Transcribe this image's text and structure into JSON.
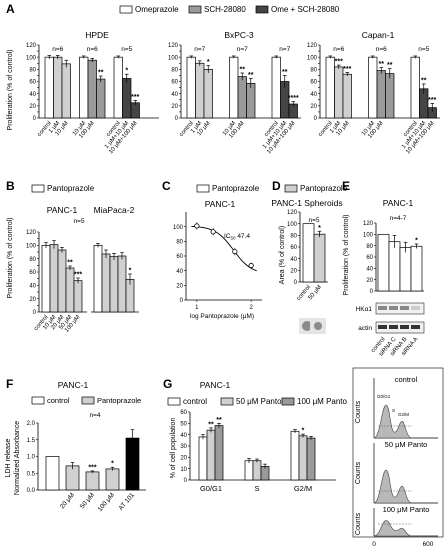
{
  "panel_letters": {
    "a": "A",
    "b": "B",
    "c": "C",
    "d": "D",
    "e": "E",
    "f": "F",
    "g": "G"
  },
  "colors": {
    "white": "#ffffff",
    "light": "#d0d0d0",
    "mid": "#9a9a9a",
    "dark": "#454545"
  },
  "chart_data": [
    {
      "panel": "A",
      "type": "bar",
      "legend": [
        "Omeprazole",
        "SCH-28080",
        "Ome + SCH-28080"
      ],
      "ylabel": "Proliferation (% of control)",
      "ylim": [
        0,
        120
      ],
      "yticks": [
        0,
        10,
        20,
        30,
        40,
        50,
        60,
        70,
        80,
        90,
        100,
        110,
        120
      ],
      "subplots": [
        {
          "title": "HPDE",
          "groups": [
            {
              "n": "n=6",
              "bars": [
                {
                  "label": "control",
                  "value": 100,
                  "err": 3,
                  "shade": "white"
                },
                {
                  "label": "1 μM",
                  "value": 100,
                  "err": 3,
                  "shade": "light"
                },
                {
                  "label": "10 μM",
                  "value": 89,
                  "err": 6,
                  "shade": "light"
                }
              ]
            },
            {
              "n": "n=6",
              "bars": [
                {
                  "label": "10 μM",
                  "value": 100,
                  "err": 2,
                  "shade": "white"
                },
                {
                  "label": "100 μM",
                  "value": 95,
                  "err": 3,
                  "shade": "mid"
                },
                {
                  "label": "",
                  "value": 64,
                  "err": 5,
                  "shade": "mid",
                  "sig": "**"
                }
              ]
            },
            {
              "n": "n=5",
              "bars": [
                {
                  "label": "control",
                  "value": 100,
                  "err": 2,
                  "shade": "white"
                },
                {
                  "label": "1 μM+10 μM",
                  "value": 65,
                  "err": 7,
                  "shade": "dark",
                  "sig": "*"
                },
                {
                  "label": "10 μM+100 μM",
                  "value": 25,
                  "err": 4,
                  "shade": "dark",
                  "sig": "***"
                }
              ]
            }
          ]
        },
        {
          "title": "BxPC-3",
          "groups": [
            {
              "n": "n=7",
              "bars": [
                {
                  "label": "control",
                  "value": 100,
                  "err": 2,
                  "shade": "white"
                },
                {
                  "label": "1 μM",
                  "value": 90,
                  "err": 4,
                  "shade": "light"
                },
                {
                  "label": "10 μM",
                  "value": 80,
                  "err": 6,
                  "shade": "light",
                  "sig": "*"
                }
              ]
            },
            {
              "n": "n=7",
              "bars": [
                {
                  "label": "10 μM",
                  "value": 100,
                  "err": 2,
                  "shade": "white"
                },
                {
                  "label": "100 μM",
                  "value": 68,
                  "err": 6,
                  "shade": "mid",
                  "sig": "**"
                },
                {
                  "label": "",
                  "value": 57,
                  "err": 8,
                  "shade": "mid",
                  "sig": "**"
                }
              ]
            },
            {
              "n": "n=7",
              "bars": [
                {
                  "label": "control",
                  "value": 100,
                  "err": 2,
                  "shade": "white"
                },
                {
                  "label": "1 μM+10 μM",
                  "value": 60,
                  "err": 10,
                  "shade": "dark",
                  "sig": "**"
                },
                {
                  "label": "10 μM+100 μM",
                  "value": 23,
                  "err": 4,
                  "shade": "dark",
                  "sig": "****"
                }
              ]
            }
          ]
        },
        {
          "title": "Capan-1",
          "groups": [
            {
              "n": "n=6",
              "bars": [
                {
                  "label": "control",
                  "value": 100,
                  "err": 2,
                  "shade": "white"
                },
                {
                  "label": "1 μM",
                  "value": 84,
                  "err": 3,
                  "shade": "light",
                  "sig": "***"
                },
                {
                  "label": "10 μM",
                  "value": 72,
                  "err": 3,
                  "shade": "light",
                  "sig": "***"
                }
              ]
            },
            {
              "n": "n=6",
              "bars": [
                {
                  "label": "10 μM",
                  "value": 100,
                  "err": 2,
                  "shade": "white"
                },
                {
                  "label": "100 μM",
                  "value": 78,
                  "err": 5,
                  "shade": "mid",
                  "sig": "**"
                },
                {
                  "label": "",
                  "value": 73,
                  "err": 8,
                  "shade": "mid",
                  "sig": "**"
                }
              ]
            },
            {
              "n": "n=5",
              "bars": [
                {
                  "label": "control",
                  "value": 100,
                  "err": 2,
                  "shade": "white"
                },
                {
                  "label": "1 μM+10 μM",
                  "value": 48,
                  "err": 8,
                  "shade": "dark",
                  "sig": "**"
                },
                {
                  "label": "10 μM+100 μM",
                  "value": 17,
                  "err": 7,
                  "shade": "dark",
                  "sig": "***"
                }
              ]
            }
          ]
        }
      ]
    },
    {
      "panel": "B",
      "type": "bar",
      "legend": [
        "Pantoprazole"
      ],
      "ylabel": "Proliferation (% of control)",
      "ylim": [
        0,
        120
      ],
      "yticks": [
        0,
        10,
        20,
        30,
        40,
        50,
        60,
        70,
        80,
        90,
        100,
        110,
        120
      ],
      "n": "n=5",
      "groups": [
        {
          "title": "PANC-1",
          "bars": [
            {
              "label": "control",
              "value": 100,
              "err": 4,
              "shade": "white"
            },
            {
              "label": "10 μM",
              "value": 101,
              "err": 6,
              "shade": "light"
            },
            {
              "label": "20 μM",
              "value": 93,
              "err": 4,
              "shade": "light"
            },
            {
              "label": "50 μM",
              "value": 66,
              "err": 3,
              "shade": "light",
              "sig": "**"
            },
            {
              "label": "100 μM",
              "value": 47,
              "err": 4,
              "shade": "light",
              "sig": "***"
            }
          ]
        },
        {
          "title": "MiaPaca-2",
          "bars": [
            {
              "label": "",
              "value": 100,
              "err": 3,
              "shade": "white"
            },
            {
              "label": "",
              "value": 87,
              "err": 6,
              "shade": "light"
            },
            {
              "label": "",
              "value": 83,
              "err": 5,
              "shade": "light"
            },
            {
              "label": "",
              "value": 84,
              "err": 5,
              "shade": "light"
            },
            {
              "label": "",
              "value": 49,
              "err": 8,
              "shade": "light",
              "sig": "*"
            }
          ]
        }
      ]
    },
    {
      "panel": "C",
      "type": "line",
      "legend": [
        "Pantoprazole"
      ],
      "title": "PANC-1",
      "xlabel": "log Pantoprazole (μM)",
      "xlim": [
        0.8,
        2.2
      ],
      "xticks": [
        1,
        2
      ],
      "ylim": [
        0,
        120
      ],
      "yticks": [
        0,
        20,
        40,
        60,
        80,
        100
      ],
      "annotation": "IC",
      "annotation_sub": "50",
      "annotation_val": " 47.4",
      "x": [
        1.0,
        1.3,
        1.7,
        2.0
      ],
      "y": [
        101,
        93,
        66,
        47
      ],
      "err": [
        5,
        5,
        5,
        4
      ]
    },
    {
      "panel": "D",
      "type": "bar",
      "legend": [
        "Pantoprazole"
      ],
      "title": "PANC-1 Spheroids",
      "ylabel": "Area (% of control)",
      "ylim": [
        0,
        120
      ],
      "yticks": [
        0,
        20,
        40,
        60,
        80,
        100,
        120
      ],
      "n": "n=5",
      "bars": [
        {
          "label": "control",
          "value": 100,
          "err": 0,
          "shade": "white"
        },
        {
          "label": "50 μM",
          "value": 82,
          "err": 5,
          "shade": "light",
          "sig": "*"
        }
      ]
    },
    {
      "panel": "E",
      "type": "bar",
      "title": "PANC-1",
      "n": "n=4-7",
      "ylabel": "Proliferation (% of control)",
      "ylim": [
        0,
        120
      ],
      "yticks": [
        0,
        20,
        40,
        60,
        80,
        100,
        120
      ],
      "bars": [
        {
          "label": "control",
          "value": 100,
          "err": 0,
          "shade": "white"
        },
        {
          "label": "siRNA C",
          "value": 87,
          "err": 11,
          "shade": "white"
        },
        {
          "label": "siRNA B",
          "value": 77,
          "err": 9,
          "shade": "white"
        },
        {
          "label": "siRNA A",
          "value": 79,
          "err": 4,
          "shade": "white",
          "sig": "*"
        }
      ],
      "blots": [
        "HKα1",
        "actin"
      ]
    },
    {
      "panel": "F",
      "type": "bar",
      "title": "PANC-1",
      "legend": [
        "control",
        "Pantoprazole"
      ],
      "n": "n=4",
      "ylabel": "LDH release",
      "ylabel2": "Normalized Absorbance",
      "ylim": [
        0,
        2.0
      ],
      "yticks": [
        0,
        0.5,
        1.0,
        1.5,
        2.0
      ],
      "bars": [
        {
          "label": "",
          "value": 1.0,
          "err": 0,
          "shade": "white"
        },
        {
          "label": "20 μM",
          "value": 0.72,
          "err": 0.1,
          "shade": "light"
        },
        {
          "label": "50 μM",
          "value": 0.54,
          "err": 0.03,
          "shade": "light",
          "sig": "***"
        },
        {
          "label": "100 μM",
          "value": 0.63,
          "err": 0.05,
          "shade": "light",
          "sig": "*"
        },
        {
          "label": "AT 101",
          "value": 1.55,
          "err": 0.25,
          "shade": "black"
        }
      ]
    },
    {
      "panel": "G",
      "type": "bar",
      "title": "PANC-1",
      "legend": [
        "control",
        "50 μM Panto",
        "100 μM Panto"
      ],
      "ylabel": "% of cell population",
      "ylim": [
        0,
        60
      ],
      "yticks": [
        0,
        10,
        20,
        30,
        40,
        50,
        60
      ],
      "categories": [
        "G0/G1",
        "S",
        "G2/M"
      ],
      "series": [
        {
          "name": "control",
          "values": [
            38,
            17,
            43
          ],
          "err": [
            2,
            2,
            1.5
          ],
          "shade": "white"
        },
        {
          "name": "50 μM Panto",
          "values": [
            44,
            17,
            39
          ],
          "err": [
            2,
            1.5,
            1.5
          ],
          "shade": "light",
          "sig": [
            "**",
            "",
            "*"
          ]
        },
        {
          "name": "100 μM Panto",
          "values": [
            48,
            12,
            37
          ],
          "err": [
            2,
            2,
            1.5
          ],
          "shade": "mid",
          "sig": [
            "**",
            "",
            ""
          ]
        }
      ]
    },
    {
      "panel": "G-histograms",
      "type": "area",
      "ylabel": "Counts",
      "xticks": [
        0,
        600
      ],
      "plots": [
        {
          "title": "control",
          "labels": [
            "G0/G1",
            "S",
            "G2/M"
          ]
        },
        {
          "title": "50 μM Panto"
        },
        {
          "title": "100 μM Panto"
        }
      ]
    }
  ]
}
